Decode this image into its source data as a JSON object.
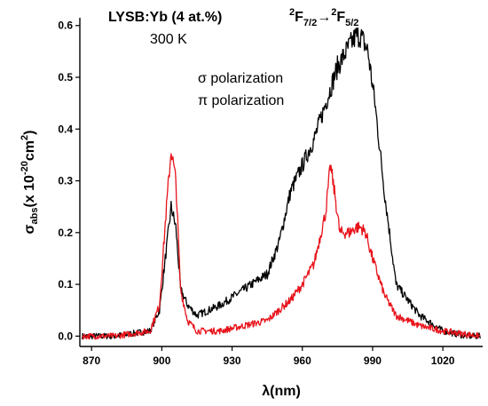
{
  "chart_data": {
    "type": "line",
    "xlabel": "λ(nm)",
    "ylabel": "σabs(x 10-20cm2)",
    "ylabel_parts": {
      "sigma": "σ",
      "sub": "abs",
      "pre": "(x 10",
      "exp": "-20",
      "mid": "cm",
      "exp2": "2",
      "post": ")"
    },
    "xlim": [
      865,
      1037
    ],
    "ylim": [
      -0.02,
      0.615
    ],
    "xticks": [
      870,
      900,
      930,
      960,
      990,
      1020
    ],
    "xtick_labels": [
      "870",
      "900",
      "930",
      "960",
      "990",
      "1020"
    ],
    "yticks": [
      0.0,
      0.1,
      0.2,
      0.3,
      0.4,
      0.5,
      0.6
    ],
    "ytick_labels": [
      "0.0",
      "0.1",
      "0.2",
      "0.3",
      "0.4",
      "0.5",
      "0.6"
    ],
    "annotations": {
      "sample": "LYSB:Yb (4 at.%)",
      "temperature": "300 K",
      "transition": {
        "a": "2",
        "b": "F",
        "c": "7/2",
        "arrow": "→",
        "d": "2",
        "e": "F",
        "f": "5/2"
      }
    },
    "series": [
      {
        "name": "σ polarization",
        "color": "#000000",
        "x": [
          866,
          880,
          895,
          899,
          902,
          904,
          906,
          908,
          911,
          915,
          925,
          935,
          945,
          950,
          955,
          960,
          965,
          970,
          975,
          980,
          983,
          985,
          988,
          991,
          995,
          1000,
          1010,
          1020,
          1030,
          1036
        ],
        "y": [
          0.0,
          0.0,
          0.01,
          0.05,
          0.17,
          0.25,
          0.21,
          0.09,
          0.06,
          0.04,
          0.06,
          0.09,
          0.12,
          0.18,
          0.28,
          0.33,
          0.38,
          0.45,
          0.52,
          0.56,
          0.58,
          0.58,
          0.55,
          0.45,
          0.28,
          0.1,
          0.04,
          0.01,
          0.0,
          0.0
        ]
      },
      {
        "name": "π polarization",
        "color": "#e8131b",
        "x": [
          866,
          880,
          895,
          899,
          902,
          904,
          906,
          908,
          911,
          915,
          925,
          935,
          945,
          950,
          955,
          960,
          965,
          970,
          972,
          974,
          976,
          978,
          980,
          983,
          985,
          987,
          990,
          995,
          1000,
          1010,
          1020,
          1036
        ],
        "y": [
          0.0,
          0.0,
          0.01,
          0.06,
          0.25,
          0.36,
          0.3,
          0.09,
          0.03,
          0.01,
          0.01,
          0.02,
          0.03,
          0.05,
          0.07,
          0.1,
          0.14,
          0.24,
          0.33,
          0.27,
          0.2,
          0.2,
          0.2,
          0.21,
          0.21,
          0.2,
          0.15,
          0.08,
          0.04,
          0.02,
          0.01,
          0.0
        ]
      }
    ],
    "legend": "top-right"
  }
}
